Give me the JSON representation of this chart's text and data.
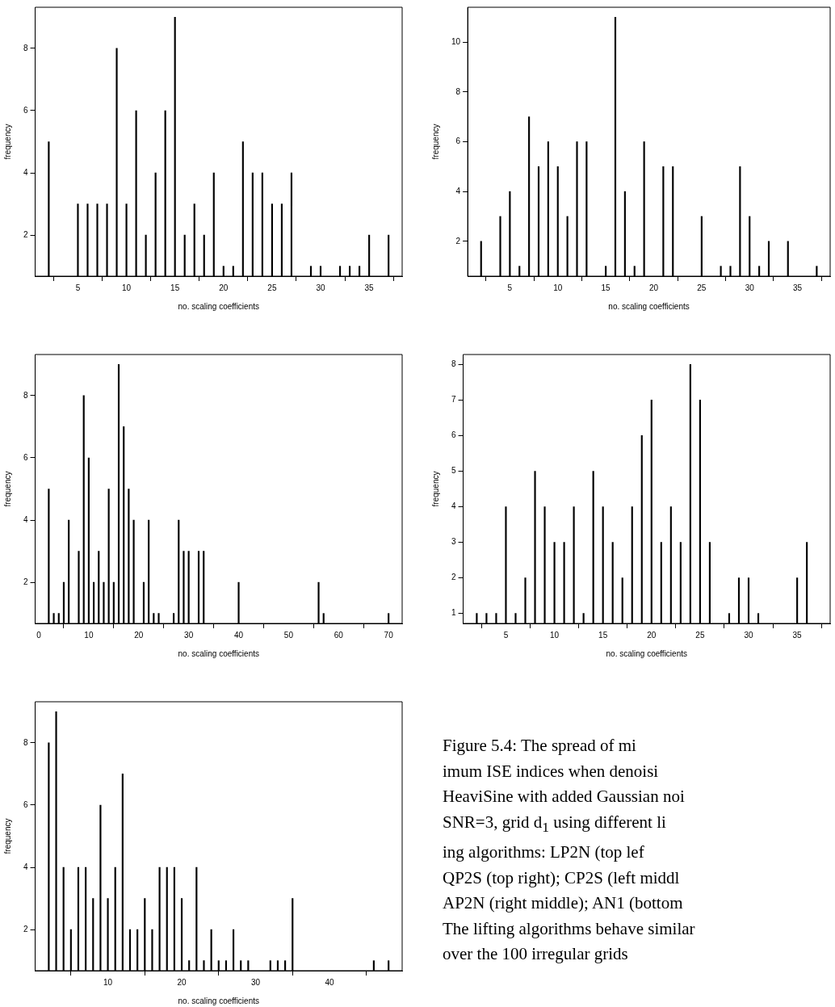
{
  "chart_data": [
    {
      "type": "bar",
      "xlabel": "no. scaling coefficients",
      "ylabel": "frequency",
      "color": "#000000",
      "xlim": [
        0.6,
        38.4
      ],
      "ylim": [
        0.68,
        9.32
      ],
      "xticks": [
        5,
        10,
        15,
        20,
        25,
        30,
        35
      ],
      "yticks": [
        2,
        4,
        6,
        8
      ],
      "x": [
        2,
        5,
        6,
        7,
        8,
        9,
        10,
        11,
        12,
        13,
        14,
        15,
        16,
        17,
        18,
        19,
        20,
        21,
        22,
        23,
        24,
        25,
        26,
        27,
        29,
        30,
        32,
        33,
        34,
        35,
        37
      ],
      "values": [
        5,
        3,
        3,
        3,
        3,
        8,
        3,
        6,
        2,
        4,
        6,
        9,
        2,
        3,
        2,
        4,
        1,
        1,
        5,
        4,
        4,
        3,
        3,
        4,
        1,
        1,
        1,
        1,
        1,
        2,
        2
      ]
    },
    {
      "type": "bar",
      "xlabel": "no. scaling coefficients",
      "ylabel": "frequency",
      "color": "#000000",
      "xlim": [
        0.6,
        38.4
      ],
      "ylim": [
        0.6,
        11.4
      ],
      "xticks": [
        5,
        10,
        15,
        20,
        25,
        30,
        35
      ],
      "yticks": [
        2,
        4,
        6,
        8,
        10
      ],
      "x": [
        2,
        4,
        5,
        6,
        7,
        8,
        9,
        10,
        11,
        12,
        13,
        15,
        16,
        17,
        18,
        19,
        21,
        22,
        25,
        27,
        28,
        29,
        30,
        31,
        32,
        34,
        37
      ],
      "values": [
        2,
        3,
        4,
        1,
        7,
        5,
        6,
        5,
        3,
        6,
        6,
        1,
        11,
        4,
        1,
        6,
        5,
        5,
        3,
        1,
        1,
        5,
        3,
        1,
        2,
        2,
        1
      ]
    },
    {
      "type": "bar",
      "xlabel": "no. scaling coefficients",
      "ylabel": "frequency",
      "color": "#000000",
      "xlim": [
        -0.72,
        72.72
      ],
      "ylim": [
        0.68,
        9.32
      ],
      "xticks": [
        0,
        10,
        20,
        30,
        40,
        50,
        60,
        70
      ],
      "yticks": [
        2,
        4,
        6,
        8
      ],
      "x": [
        2,
        3,
        4,
        5,
        6,
        8,
        9,
        10,
        11,
        12,
        13,
        14,
        15,
        16,
        17,
        18,
        19,
        21,
        22,
        23,
        24,
        27,
        28,
        29,
        30,
        32,
        33,
        40,
        56,
        57,
        70
      ],
      "values": [
        5,
        1,
        1,
        2,
        4,
        3,
        8,
        6,
        2,
        3,
        2,
        5,
        2,
        9,
        7,
        5,
        4,
        2,
        4,
        1,
        1,
        1,
        4,
        3,
        3,
        3,
        3,
        2,
        2,
        1,
        1
      ]
    },
    {
      "type": "bar",
      "xlabel": "no. scaling coefficients",
      "ylabel": "frequency",
      "color": "#000000",
      "xlim": [
        0.6,
        38.4
      ],
      "ylim": [
        0.72,
        8.28
      ],
      "xticks": [
        5,
        10,
        15,
        20,
        25,
        30,
        35
      ],
      "yticks": [
        1,
        2,
        3,
        4,
        5,
        6,
        7,
        8
      ],
      "x": [
        2,
        3,
        4,
        5,
        6,
        7,
        8,
        9,
        10,
        11,
        12,
        13,
        14,
        15,
        16,
        17,
        18,
        19,
        20,
        21,
        22,
        23,
        24,
        25,
        26,
        28,
        29,
        30,
        31,
        35,
        36
      ],
      "values": [
        1,
        1,
        1,
        4,
        1,
        2,
        5,
        4,
        3,
        3,
        4,
        1,
        5,
        4,
        3,
        2,
        4,
        6,
        7,
        3,
        4,
        3,
        8,
        7,
        3,
        1,
        2,
        2,
        1,
        2,
        3
      ]
    },
    {
      "type": "bar",
      "xlabel": "no. scaling coefficients",
      "ylabel": "frequency",
      "color": "#000000",
      "xlim": [
        0.16,
        49.84
      ],
      "ylim": [
        0.68,
        9.32
      ],
      "xticks": [
        10,
        20,
        30,
        40
      ],
      "yticks": [
        2,
        4,
        6,
        8
      ],
      "x": [
        2,
        3,
        4,
        5,
        6,
        7,
        8,
        9,
        10,
        11,
        12,
        13,
        14,
        15,
        16,
        17,
        18,
        19,
        20,
        21,
        22,
        23,
        24,
        25,
        26,
        27,
        28,
        29,
        32,
        33,
        34,
        35,
        46,
        48
      ],
      "values": [
        8,
        9,
        4,
        2,
        4,
        4,
        3,
        6,
        3,
        4,
        7,
        2,
        2,
        3,
        2,
        4,
        4,
        4,
        3,
        1,
        4,
        1,
        2,
        1,
        1,
        2,
        1,
        1,
        1,
        1,
        1,
        3,
        1,
        1
      ],
      "annotations": [
        "Figure 5.4: The spread of mi",
        "imum ISE indices when denoisi",
        "HeaviSine with added Gaussian noi",
        "SNR=3, grid d$_{1}$ using different li",
        "ing algorithms: LP2N (top lef",
        "QP2S (top right); CP2S (left middl",
        "AP2N (right middle); AN1 (bottom",
        "The lifting algorithms behave similar",
        "over the 100 irregular grids"
      ]
    }
  ]
}
